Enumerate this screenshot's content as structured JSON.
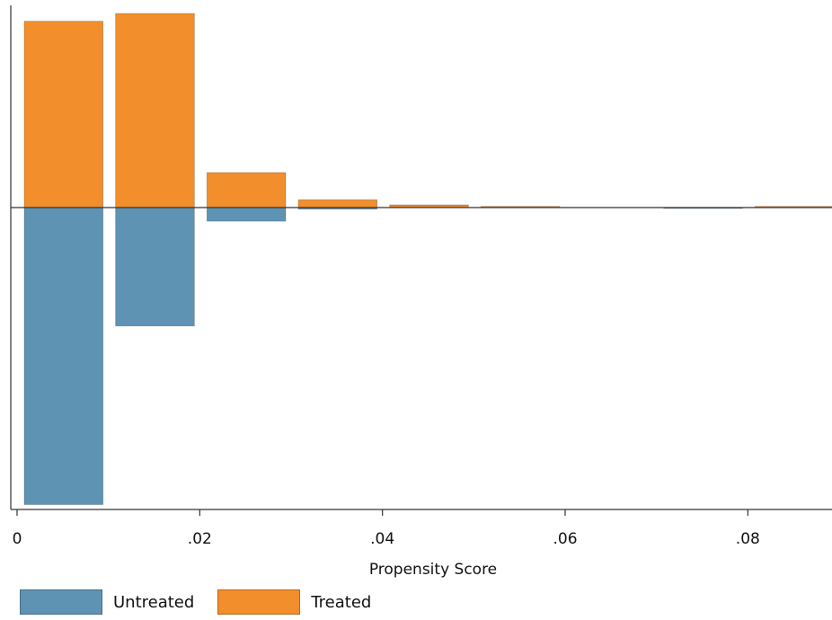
{
  "chart_data": {
    "type": "bar",
    "title": "",
    "xlabel": "Propensity Score",
    "ylabel": "",
    "xlim": [
      0,
      0.089
    ],
    "x_ticks": [
      {
        "value": 0,
        "label": "0"
      },
      {
        "value": 0.02,
        "label": ".02"
      },
      {
        "value": 0.04,
        "label": ".04"
      },
      {
        "value": 0.06,
        "label": ".06"
      },
      {
        "value": 0.08,
        "label": ".08"
      }
    ],
    "bin_width": 0.01,
    "bin_starts": [
      0,
      0.01,
      0.02,
      0.03,
      0.04,
      0.05,
      0.06,
      0.07,
      0.08
    ],
    "series": [
      {
        "name": "Treated",
        "color": "#F28E2B",
        "direction": "up",
        "values": [
          0.96,
          1.0,
          0.18,
          0.04,
          0.014,
          0.006,
          0,
          0,
          0.006
        ]
      },
      {
        "name": "Untreated",
        "color": "#5E93B3",
        "direction": "down",
        "values": [
          1.53,
          0.61,
          0.07,
          0.008,
          0,
          0,
          0,
          0.004,
          0
        ]
      }
    ],
    "legend": {
      "position": "bottom-left",
      "items": [
        "Untreated",
        "Treated"
      ]
    },
    "grid": false
  }
}
